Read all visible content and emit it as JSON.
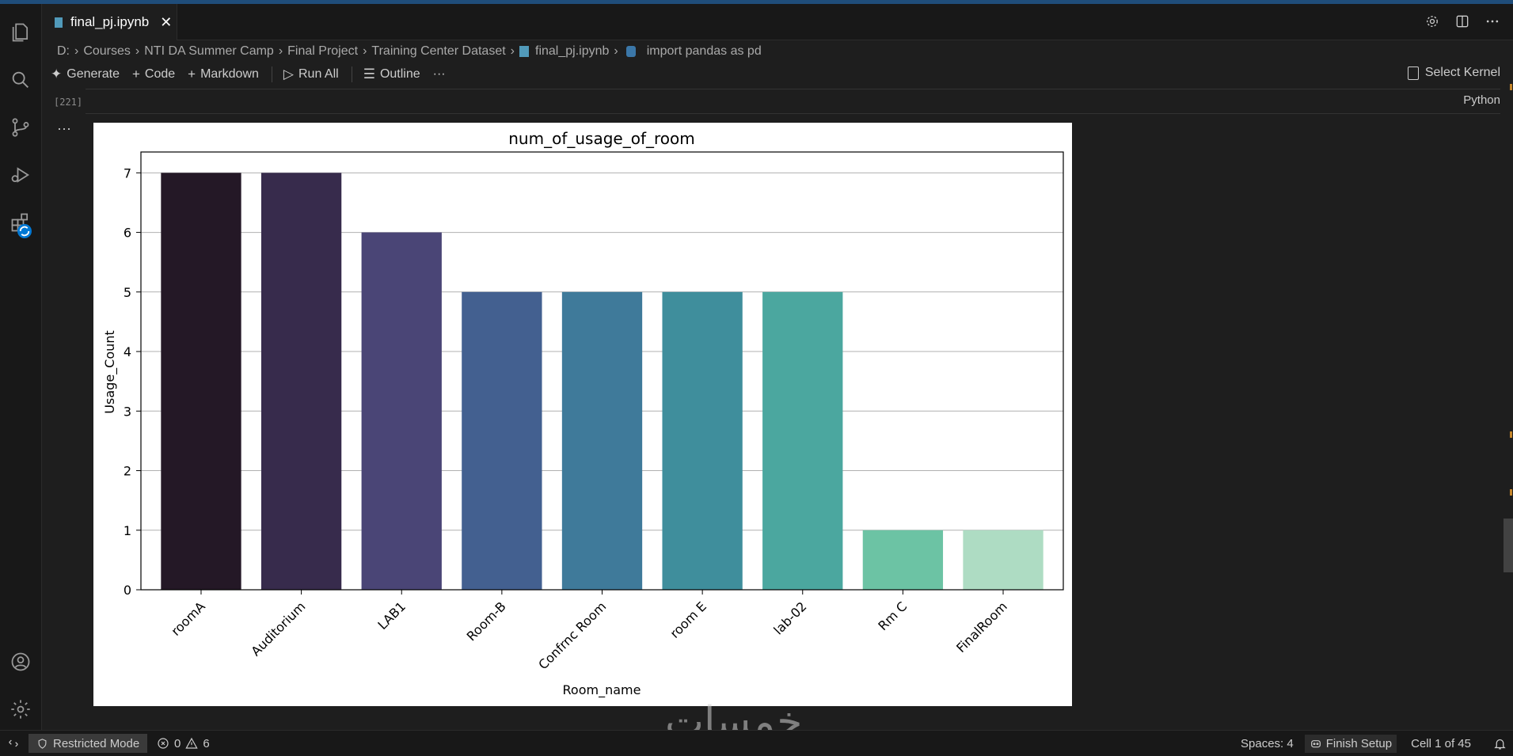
{
  "tab": {
    "filename": "final_pj.ipynb",
    "close": "✕"
  },
  "breadcrumb": [
    "D:",
    "Courses",
    "NTI DA Summer Camp",
    "Final Project",
    "Training Center Dataset",
    "final_pj.ipynb",
    "import pandas as pd"
  ],
  "toolbar": {
    "generate": "Generate",
    "code": "Code",
    "markdown": "Markdown",
    "run_all": "Run All",
    "outline": "Outline",
    "more": "···",
    "select_kernel": "Select Kernel"
  },
  "cell": {
    "exec_count": "[221]",
    "language": "Python",
    "output_more": "···"
  },
  "chart_data": {
    "type": "bar",
    "title": "num_of_usage_of_room",
    "xlabel": "Room_name",
    "ylabel": "Usage_Count",
    "categories": [
      "roomA",
      "Auditorium",
      "LAB1",
      "Room-B",
      "Confrnc Room",
      "room E",
      "lab-02",
      "Rm C",
      "FinalRoom"
    ],
    "values": [
      7,
      7,
      6,
      5,
      5,
      5,
      5,
      1,
      1
    ],
    "colors": [
      "#241826",
      "#372b4c",
      "#4a4576",
      "#436090",
      "#3f7a9a",
      "#3f8e9c",
      "#4ba79f",
      "#6cc3a4",
      "#aedcc3"
    ],
    "ylim": [
      0,
      7.35
    ],
    "yticks": [
      "0",
      "1",
      "2",
      "3",
      "4",
      "5",
      "6",
      "7"
    ],
    "grid": "y"
  },
  "status": {
    "restricted": "Restricted Mode",
    "errors": "0",
    "warnings": "6",
    "spaces": "Spaces: 4",
    "finish_setup": "Finish Setup",
    "cell_pos": "Cell 1 of 45"
  },
  "watermark": "خمسات"
}
